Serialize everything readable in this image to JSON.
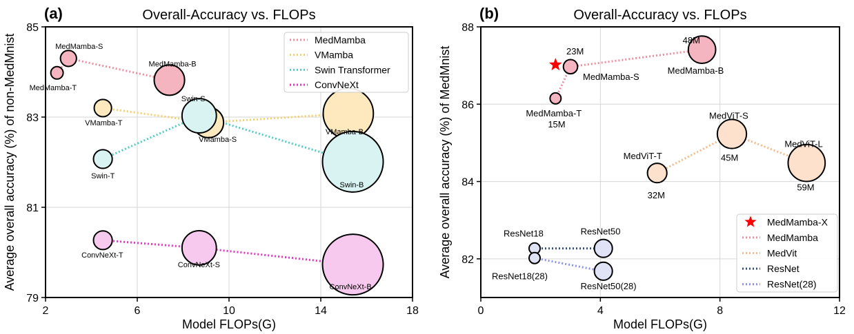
{
  "chart_data": [
    {
      "panel_label": "(a)",
      "type": "scatter",
      "title": "Overall-Accuracy vs. FLOPs",
      "xlabel": "Model FLOPs(G)",
      "ylabel": "Average overall accuracy (%) of non-MedMnist",
      "xlim": [
        2,
        18
      ],
      "ylim": [
        79,
        85
      ],
      "xticks": [
        "2",
        "6",
        "10",
        "14",
        "18"
      ],
      "yticks": [
        "79",
        "81",
        "83",
        "85"
      ],
      "grid": true,
      "legend_position": "top-right",
      "series": [
        {
          "name": "MedMamba",
          "line_color": "#f08ca0",
          "fill_color": "#f4b4c0",
          "points": [
            {
              "label": "MedMamba-T",
              "x": 2.5,
              "y": 83.98,
              "size": 1.0
            },
            {
              "label": "MedMamba-S",
              "x": 3.0,
              "y": 84.3,
              "size": 1.3
            },
            {
              "label": "MedMamba-B",
              "x": 7.4,
              "y": 83.82,
              "size": 2.2
            }
          ]
        },
        {
          "name": "VMamba",
          "line_color": "#f5cf6a",
          "fill_color": "#fde9bd",
          "points": [
            {
              "label": "VMamba-T",
              "x": 4.5,
              "y": 83.2,
              "size": 1.4
            },
            {
              "label": "VMamba-S",
              "x": 9.1,
              "y": 82.88,
              "size": 2.2
            },
            {
              "label": "VMamba-B",
              "x": 15.2,
              "y": 83.08,
              "size": 3.1
            }
          ]
        },
        {
          "name": "Swin Transformer",
          "line_color": "#4ecdc4",
          "fill_color": "#d8f3f1",
          "points": [
            {
              "label": "Swin-T",
              "x": 4.5,
              "y": 82.07,
              "size": 1.5
            },
            {
              "label": "Swin-S",
              "x": 8.7,
              "y": 83.03,
              "size": 2.4
            },
            {
              "label": "Swin-B",
              "x": 15.4,
              "y": 82.01,
              "size": 3.5
            }
          ]
        },
        {
          "name": "ConvNeXt",
          "line_color": "#e832c4",
          "fill_color": "#f7c9ee",
          "points": [
            {
              "label": "ConvNeXt-T",
              "x": 4.5,
              "y": 80.27,
              "size": 1.5
            },
            {
              "label": "ConvNeXt-S",
              "x": 8.7,
              "y": 80.1,
              "size": 2.4
            },
            {
              "label": "ConvNeXt-B",
              "x": 15.4,
              "y": 79.73,
              "size": 3.5
            }
          ]
        }
      ]
    },
    {
      "panel_label": "(b)",
      "type": "scatter",
      "title": "Overall-Accuracy vs. FLOPs",
      "xlabel": "Model FLOPs(G)",
      "ylabel": "Average overall accuracy (%) of MedMnist",
      "xlim": [
        0,
        12
      ],
      "ylim": [
        81,
        88
      ],
      "xticks": [
        "0",
        "4",
        "8",
        "12"
      ],
      "yticks": [
        "82",
        "84",
        "86",
        "88"
      ],
      "grid": true,
      "legend_position": "bottom-right",
      "highlight": {
        "name": "MedMamba-X",
        "x": 2.5,
        "y": 87.02,
        "marker": "star",
        "color": "#ff0000"
      },
      "series": [
        {
          "name": "MedMamba",
          "line_color": "#f08ca0",
          "fill_color": "#f4b4c0",
          "points": [
            {
              "label": "MedMamba-T",
              "params": "15M",
              "x": 2.5,
              "y": 86.15,
              "size": 1.0
            },
            {
              "label": "MedMamba-S",
              "params": "23M",
              "x": 3.0,
              "y": 86.97,
              "size": 1.3
            },
            {
              "label": "MedMamba-B",
              "params": "48M",
              "x": 7.4,
              "y": 87.41,
              "size": 2.2
            }
          ]
        },
        {
          "name": "MedVit",
          "line_color": "#f5b98a",
          "fill_color": "#fde1cc",
          "points": [
            {
              "label": "MedViT-T",
              "params": "32M",
              "x": 5.9,
              "y": 84.22,
              "size": 1.7
            },
            {
              "label": "MedViT-S",
              "params": "45M",
              "x": 8.4,
              "y": 85.23,
              "size": 2.3
            },
            {
              "label": "MedViT-L",
              "params": "59M",
              "x": 10.9,
              "y": 84.48,
              "size": 2.7
            }
          ]
        },
        {
          "name": "ResNet",
          "line_color": "#2f4f7f",
          "fill_color": "#dfe3f5",
          "points": [
            {
              "label": "ResNet18",
              "x": 1.8,
              "y": 82.27,
              "size": 1.0
            },
            {
              "label": "ResNet50",
              "x": 4.1,
              "y": 82.27,
              "size": 1.6
            }
          ]
        },
        {
          "name": "ResNet(28)",
          "line_color": "#8a8fe8",
          "fill_color": "#dfe3f5",
          "points": [
            {
              "label": "ResNet18(28)",
              "x": 1.8,
              "y": 82.02,
              "size": 1.0
            },
            {
              "label": "ResNet50(28)",
              "x": 4.1,
              "y": 81.68,
              "size": 1.6
            }
          ]
        }
      ]
    }
  ]
}
